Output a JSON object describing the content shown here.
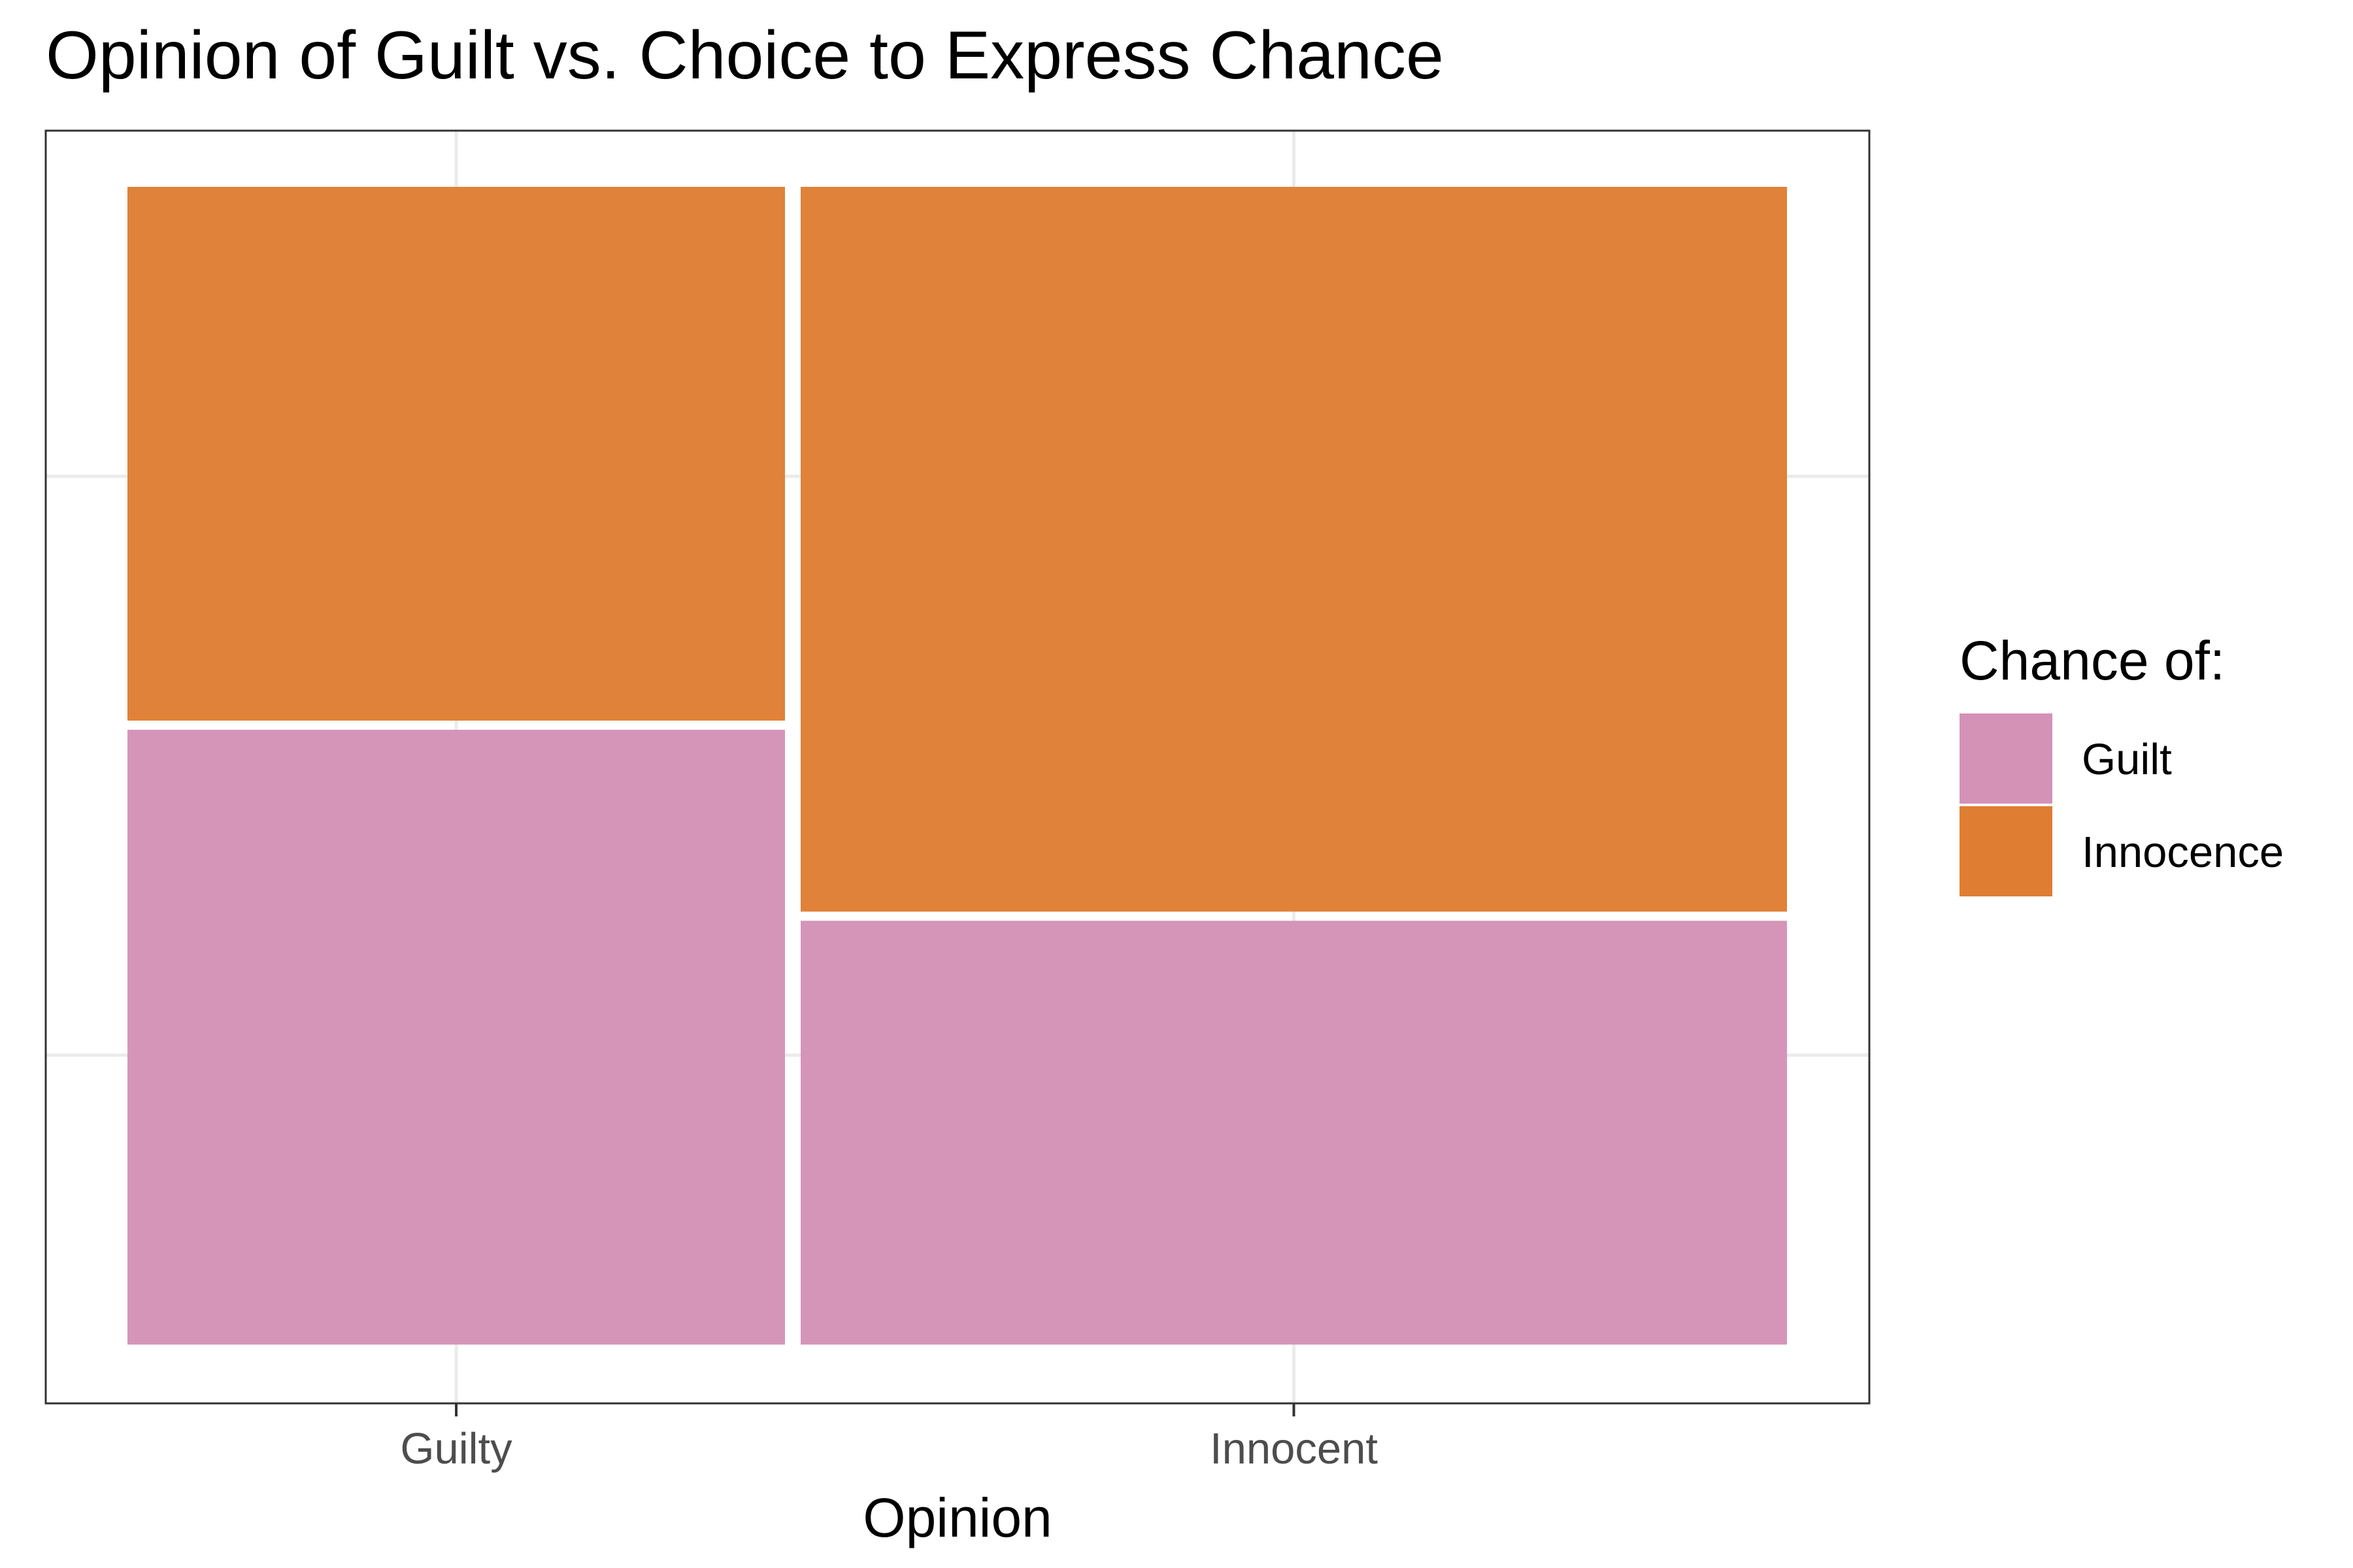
{
  "chart_data": {
    "type": "mosaic",
    "title": "Opinion of Guilt vs. Choice to Express Chance",
    "xlabel": "Opinion",
    "ylabel": "",
    "categories": [
      "Guilty",
      "Innocent"
    ],
    "column_shares": [
      0.4,
      0.6
    ],
    "series": [
      {
        "name": "Guilt",
        "color": "#d492b7",
        "values": [
          0.535,
          0.37
        ]
      },
      {
        "name": "Innocence",
        "color": "#df7e33",
        "values": [
          0.465,
          0.63
        ]
      }
    ],
    "ylim": [
      0,
      1
    ],
    "grid": true,
    "legend": {
      "title": "Chance of:",
      "placement": "right",
      "items": [
        "Guilt",
        "Innocence"
      ]
    }
  }
}
